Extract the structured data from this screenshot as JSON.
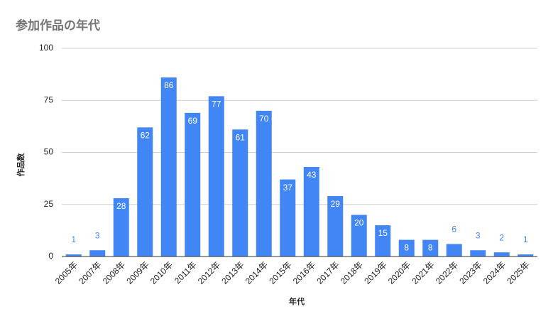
{
  "chart_data": {
    "type": "bar",
    "title": "参加作品の年代",
    "x_label": "年代",
    "y_label": "作品数",
    "categories": [
      "2005年",
      "2007年",
      "2008年",
      "2009年",
      "2010年",
      "2011年",
      "2012年",
      "2013年",
      "2014年",
      "2015年",
      "2016年",
      "2017年",
      "2018年",
      "2019年",
      "2020年",
      "2021年",
      "2022年",
      "2023年",
      "2024年",
      "2025年"
    ],
    "values": [
      1,
      3,
      28,
      62,
      86,
      69,
      77,
      61,
      70,
      37,
      43,
      29,
      20,
      15,
      8,
      8,
      6,
      3,
      2,
      1
    ],
    "color": "#4285f4",
    "ylim": [
      0,
      100
    ],
    "yticks": [
      0,
      25,
      50,
      75,
      100
    ],
    "grid": true
  }
}
